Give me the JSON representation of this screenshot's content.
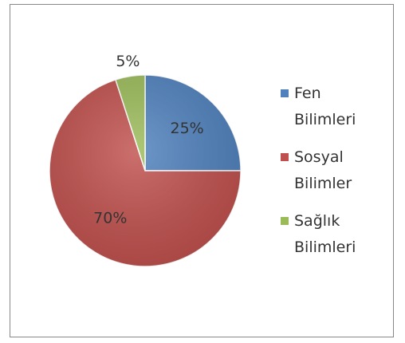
{
  "chart_data": {
    "type": "pie",
    "categories": [
      "Fen Bilimleri",
      "Sosyal Bilimler",
      "Sağlık Bilimleri"
    ],
    "values": [
      25,
      70,
      5
    ],
    "value_labels": [
      "25%",
      "70%",
      "5%"
    ],
    "colors": [
      "#4f81bd",
      "#c0504d",
      "#9bbb59"
    ],
    "legend": "right"
  }
}
